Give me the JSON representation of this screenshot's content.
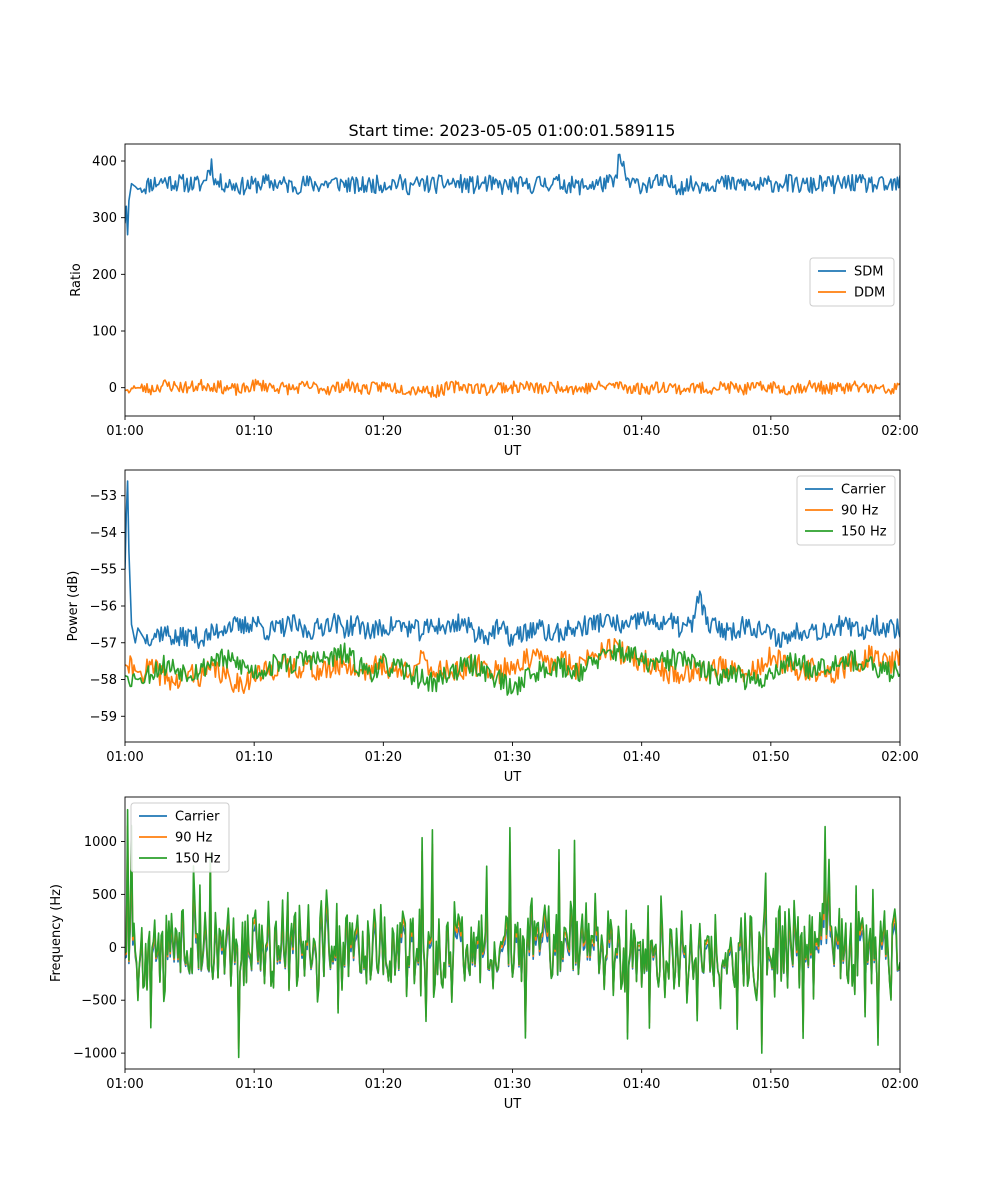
{
  "figure": {
    "title": "Start time: 2023-05-05 01:00:01.589115"
  },
  "chart_data": [
    {
      "type": "line",
      "xlabel": "UT",
      "ylabel": "Ratio",
      "xlim": [
        0,
        60
      ],
      "ylim": [
        -50,
        430
      ],
      "x_ticks": [
        {
          "v": 0,
          "label": "01:00"
        },
        {
          "v": 10,
          "label": "01:10"
        },
        {
          "v": 20,
          "label": "01:20"
        },
        {
          "v": 30,
          "label": "01:30"
        },
        {
          "v": 40,
          "label": "01:40"
        },
        {
          "v": 50,
          "label": "01:50"
        },
        {
          "v": 60,
          "label": "02:00"
        }
      ],
      "y_ticks": [
        {
          "v": 0,
          "label": "0"
        },
        {
          "v": 100,
          "label": "100"
        },
        {
          "v": 200,
          "label": "200"
        },
        {
          "v": 300,
          "label": "300"
        },
        {
          "v": 400,
          "label": "400"
        }
      ],
      "legend": "center-right",
      "series": [
        {
          "name": "SDM",
          "color": "#1f77b4",
          "noise_seed": 11,
          "x": [
            0,
            0.1,
            0.2,
            0.3,
            0.5,
            0.8,
            1,
            2,
            3,
            4,
            5,
            6,
            6.7,
            7,
            8,
            9,
            10,
            11,
            12,
            13,
            14,
            15,
            16,
            17,
            18,
            19,
            20,
            21,
            22,
            23,
            24,
            25,
            26,
            27,
            28,
            29,
            30,
            31,
            32,
            33,
            34,
            35,
            36,
            37,
            38,
            38.2,
            39,
            40,
            41,
            42,
            43,
            44,
            45,
            46,
            47,
            48,
            49,
            50,
            51,
            52,
            53,
            54,
            55,
            56,
            57,
            58,
            59,
            60
          ],
          "y": [
            290,
            320,
            270,
            330,
            360,
            355,
            350,
            360,
            365,
            362,
            360,
            358,
            395,
            362,
            360,
            355,
            358,
            362,
            360,
            356,
            360,
            358,
            362,
            360,
            355,
            358,
            360,
            362,
            356,
            360,
            358,
            362,
            360,
            357,
            360,
            355,
            358,
            356,
            360,
            362,
            360,
            355,
            358,
            360,
            362,
            408,
            360,
            358,
            362,
            360,
            356,
            358,
            360,
            362,
            358,
            360,
            355,
            360,
            362,
            358,
            356,
            360,
            358,
            362,
            360,
            358,
            355,
            360
          ],
          "noise_amp": 16
        },
        {
          "name": "DDM",
          "color": "#ff7f0e",
          "noise_seed": 23,
          "x": [
            0,
            1,
            2,
            3,
            4,
            5,
            6,
            7,
            8,
            9,
            10,
            11,
            12,
            13,
            14,
            15,
            16,
            17,
            18,
            19,
            20,
            21,
            22,
            23,
            24,
            25,
            26,
            27,
            28,
            29,
            30,
            31,
            32,
            33,
            34,
            35,
            36,
            37,
            38,
            39,
            40,
            41,
            42,
            43,
            44,
            45,
            46,
            47,
            48,
            49,
            50,
            51,
            52,
            53,
            54,
            55,
            56,
            57,
            58,
            59,
            60
          ],
          "y": [
            -5,
            0,
            -3,
            5,
            2,
            0,
            5,
            3,
            -2,
            -5,
            5,
            3,
            0,
            -2,
            2,
            0,
            -3,
            5,
            0,
            -2,
            3,
            0,
            -3,
            -2,
            -8,
            0,
            3,
            0,
            -3,
            2,
            0,
            3,
            -2,
            0,
            3,
            -3,
            0,
            2,
            5,
            0,
            -2,
            0,
            3,
            -3,
            0,
            -2,
            2,
            0,
            -3,
            0,
            2,
            -3,
            0,
            3,
            0,
            -2,
            0,
            2,
            -3,
            -5,
            0
          ],
          "noise_amp": 11
        }
      ]
    },
    {
      "type": "line",
      "xlabel": "UT",
      "ylabel": "Power (dB)",
      "xlim": [
        0,
        60
      ],
      "ylim": [
        -59.7,
        -52.3
      ],
      "x_ticks": [
        {
          "v": 0,
          "label": "01:00"
        },
        {
          "v": 10,
          "label": "01:10"
        },
        {
          "v": 20,
          "label": "01:20"
        },
        {
          "v": 30,
          "label": "01:30"
        },
        {
          "v": 40,
          "label": "01:40"
        },
        {
          "v": 50,
          "label": "01:50"
        },
        {
          "v": 60,
          "label": "02:00"
        }
      ],
      "y_ticks": [
        {
          "v": -59,
          "label": "−59"
        },
        {
          "v": -58,
          "label": "−58"
        },
        {
          "v": -57,
          "label": "−57"
        },
        {
          "v": -56,
          "label": "−56"
        },
        {
          "v": -55,
          "label": "−55"
        },
        {
          "v": -54,
          "label": "−54"
        },
        {
          "v": -53,
          "label": "−53"
        }
      ],
      "legend": "top-right",
      "series": [
        {
          "name": "Carrier",
          "color": "#1f77b4",
          "noise_seed": 37,
          "x": [
            0,
            0.1,
            0.2,
            0.3,
            0.5,
            0.8,
            1,
            1.5,
            2,
            3,
            4,
            5,
            6,
            7,
            8,
            9,
            10,
            11,
            12,
            13,
            14,
            15,
            16,
            17,
            18,
            19,
            20,
            21,
            22,
            23,
            24,
            25,
            26,
            27,
            28,
            29,
            30,
            31,
            32,
            33,
            34,
            35,
            36,
            37,
            38,
            39,
            40,
            41,
            42,
            43,
            44,
            44.5,
            45,
            46,
            47,
            48,
            49,
            50,
            51,
            52,
            53,
            54,
            55,
            56,
            57,
            58,
            59,
            60
          ],
          "y": [
            -55.0,
            -53.5,
            -52.6,
            -54.5,
            -56.5,
            -57.0,
            -56.6,
            -56.9,
            -56.8,
            -56.7,
            -56.9,
            -56.8,
            -56.9,
            -56.7,
            -56.5,
            -56.6,
            -56.4,
            -56.7,
            -56.6,
            -56.5,
            -56.7,
            -56.6,
            -56.4,
            -56.6,
            -56.5,
            -56.7,
            -56.6,
            -56.5,
            -56.6,
            -56.7,
            -56.5,
            -56.6,
            -56.4,
            -56.7,
            -56.8,
            -56.6,
            -56.9,
            -56.7,
            -56.6,
            -56.8,
            -56.7,
            -56.6,
            -56.5,
            -56.4,
            -56.5,
            -56.6,
            -56.3,
            -56.5,
            -56.4,
            -56.6,
            -56.5,
            -55.6,
            -56.5,
            -56.6,
            -56.7,
            -56.5,
            -56.6,
            -56.8,
            -56.9,
            -56.7,
            -56.6,
            -56.7,
            -56.5,
            -56.6,
            -56.7,
            -56.5,
            -56.6,
            -56.6
          ],
          "noise_amp": 0.28
        },
        {
          "name": "90 Hz",
          "color": "#ff7f0e",
          "noise_seed": 41,
          "x": [
            0,
            1,
            2,
            3,
            4,
            5,
            6,
            7,
            8,
            9,
            10,
            11,
            12,
            13,
            14,
            15,
            16,
            17,
            18,
            19,
            20,
            21,
            22,
            23,
            24,
            25,
            26,
            27,
            28,
            29,
            30,
            31,
            32,
            33,
            34,
            35,
            36,
            37,
            38,
            39,
            40,
            41,
            42,
            43,
            44,
            45,
            46,
            47,
            48,
            49,
            50,
            51,
            52,
            53,
            54,
            55,
            56,
            57,
            58,
            59,
            60
          ],
          "y": [
            -57.6,
            -57.8,
            -57.7,
            -57.9,
            -58.1,
            -57.8,
            -57.9,
            -57.7,
            -58.0,
            -58.1,
            -57.9,
            -57.8,
            -57.6,
            -57.7,
            -57.6,
            -57.8,
            -57.7,
            -57.5,
            -57.8,
            -57.7,
            -57.6,
            -57.8,
            -57.7,
            -57.5,
            -57.8,
            -57.7,
            -57.8,
            -57.6,
            -57.7,
            -57.8,
            -57.6,
            -57.5,
            -57.4,
            -57.6,
            -57.5,
            -57.7,
            -57.3,
            -57.1,
            -57.2,
            -57.4,
            -57.5,
            -57.6,
            -57.8,
            -57.9,
            -57.7,
            -57.8,
            -57.6,
            -57.8,
            -57.9,
            -57.7,
            -57.4,
            -57.6,
            -57.8,
            -57.7,
            -57.9,
            -57.8,
            -57.6,
            -57.5,
            -57.3,
            -57.6,
            -57.4
          ],
          "noise_amp": 0.32
        },
        {
          "name": "150 Hz",
          "color": "#2ca02c",
          "noise_seed": 53,
          "x": [
            0,
            1,
            2,
            3,
            4,
            5,
            6,
            7,
            8,
            9,
            10,
            11,
            12,
            13,
            14,
            15,
            16,
            17,
            18,
            19,
            20,
            21,
            22,
            23,
            24,
            25,
            26,
            27,
            28,
            29,
            30,
            31,
            32,
            33,
            34,
            35,
            36,
            37,
            38,
            39,
            40,
            41,
            42,
            43,
            44,
            45,
            46,
            47,
            48,
            49,
            50,
            51,
            52,
            53,
            54,
            55,
            56,
            57,
            58,
            59,
            60
          ],
          "y": [
            -57.9,
            -58.0,
            -57.8,
            -57.6,
            -57.7,
            -57.8,
            -57.7,
            -57.4,
            -57.5,
            -57.6,
            -57.8,
            -57.7,
            -57.5,
            -57.6,
            -57.4,
            -57.5,
            -57.4,
            -57.3,
            -57.6,
            -57.8,
            -57.6,
            -57.7,
            -57.8,
            -58.0,
            -58.1,
            -57.8,
            -57.7,
            -57.6,
            -57.8,
            -58.0,
            -58.3,
            -57.9,
            -57.8,
            -57.6,
            -57.7,
            -57.8,
            -57.6,
            -57.4,
            -57.2,
            -57.3,
            -57.5,
            -57.6,
            -57.5,
            -57.4,
            -57.6,
            -57.8,
            -57.9,
            -57.7,
            -58.0,
            -58.1,
            -57.8,
            -57.6,
            -57.5,
            -57.7,
            -57.6,
            -57.5,
            -57.4,
            -57.6,
            -57.7,
            -57.8,
            -57.7
          ],
          "noise_amp": 0.3
        }
      ]
    },
    {
      "type": "line",
      "xlabel": "UT",
      "ylabel": "Frequency (Hz)",
      "xlim": [
        0,
        60
      ],
      "ylim": [
        -1150,
        1420
      ],
      "x_ticks": [
        {
          "v": 0,
          "label": "01:00"
        },
        {
          "v": 10,
          "label": "01:10"
        },
        {
          "v": 20,
          "label": "01:20"
        },
        {
          "v": 30,
          "label": "01:30"
        },
        {
          "v": 40,
          "label": "01:40"
        },
        {
          "v": 50,
          "label": "01:50"
        },
        {
          "v": 60,
          "label": "02:00"
        }
      ],
      "y_ticks": [
        {
          "v": -1000,
          "label": "−1000"
        },
        {
          "v": -500,
          "label": "−500"
        },
        {
          "v": 0,
          "label": "0"
        },
        {
          "v": 500,
          "label": "500"
        },
        {
          "v": 1000,
          "label": "1000"
        }
      ],
      "legend": "top-left",
      "series": [
        {
          "name": "Carrier",
          "color": "#1f77b4",
          "scale": 0.78,
          "offset": -60
        },
        {
          "name": "90 Hz",
          "color": "#ff7f0e",
          "scale": 0.9,
          "offset": -25
        },
        {
          "name": "150 Hz",
          "color": "#2ca02c",
          "scale": 1.0,
          "offset": 0
        }
      ],
      "noise_seed": 71,
      "noise_amp": 330,
      "peaks": [
        {
          "x": 0.2,
          "y": 1300
        },
        {
          "x": 0.5,
          "y": 1150
        },
        {
          "x": 8.8,
          "y": -1040
        },
        {
          "x": 23.8,
          "y": 1110
        },
        {
          "x": 29.8,
          "y": 1130
        },
        {
          "x": 34.8,
          "y": 1010
        },
        {
          "x": 49.3,
          "y": -1000
        },
        {
          "x": 54.2,
          "y": 1140
        },
        {
          "x": 2.0,
          "y": -760
        },
        {
          "x": 6.6,
          "y": 890
        },
        {
          "x": 16.5,
          "y": -620
        },
        {
          "x": 52.5,
          "y": -860
        }
      ]
    }
  ]
}
